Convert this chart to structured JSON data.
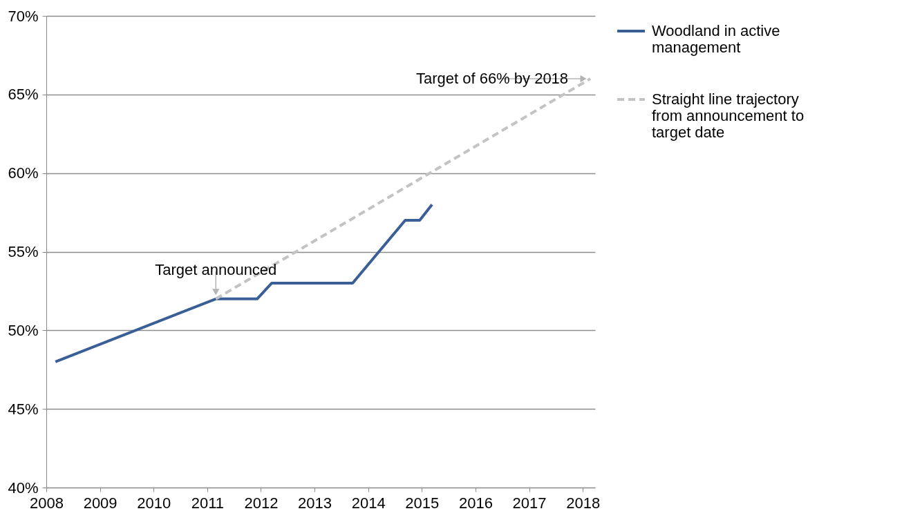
{
  "chart_data": {
    "type": "line",
    "series": [
      {
        "name": "Woodland in active management",
        "color": "#3a5f96",
        "line_style": "solid",
        "x": [
          2008.17,
          2011.16,
          2011.93,
          2012.2,
          2013.71,
          2014.69,
          2014.96,
          2015.19
        ],
        "values": [
          48,
          52,
          52,
          53,
          53,
          57,
          57,
          58
        ]
      },
      {
        "name": "Straight line trajectory from announcement to target date",
        "color": "#c3c3c3",
        "line_style": "dashed",
        "x": [
          2011.16,
          2018.14
        ],
        "values": [
          52,
          66
        ]
      }
    ],
    "xlim": [
      2008,
      2018.23
    ],
    "xticks": [
      2008,
      2009,
      2010,
      2011,
      2012,
      2013,
      2014,
      2015,
      2016,
      2017,
      2018
    ],
    "ylim": [
      40,
      70
    ],
    "yticks": [
      {
        "value": 40,
        "label": "40%"
      },
      {
        "value": 45,
        "label": "45%"
      },
      {
        "value": 50,
        "label": "50%"
      },
      {
        "value": 55,
        "label": "55%"
      },
      {
        "value": 60,
        "label": "60%"
      },
      {
        "value": 65,
        "label": "65%"
      },
      {
        "value": 70,
        "label": "70%"
      }
    ],
    "annotations": [
      {
        "text": "Target announced",
        "x": 2011.16,
        "y": 52
      },
      {
        "text": "Target of 66% by 2018",
        "x": 2018.14,
        "y": 66
      }
    ],
    "grid": "y",
    "legend": "right",
    "marker": "none"
  }
}
